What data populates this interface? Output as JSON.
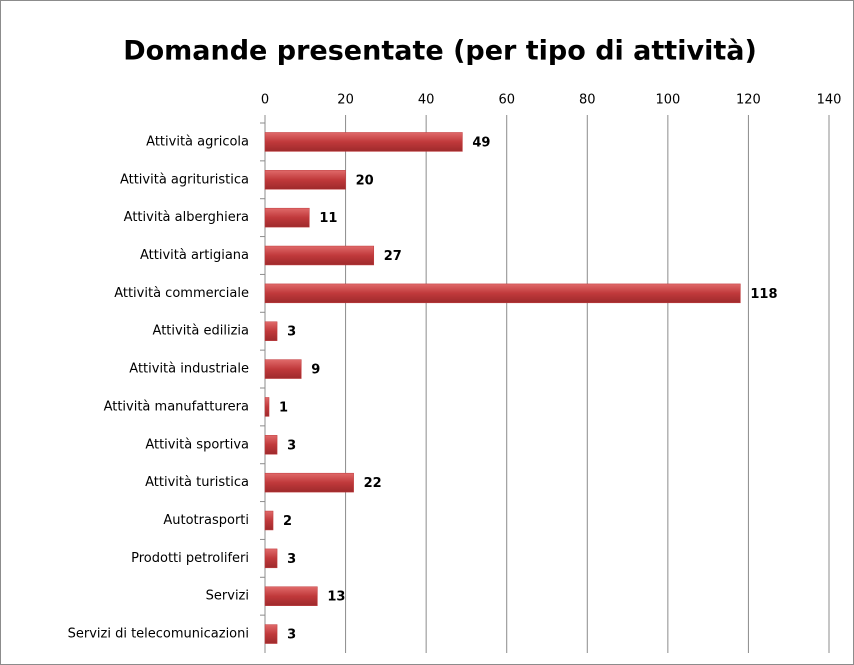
{
  "chart_data": {
    "type": "bar",
    "orientation": "horizontal",
    "title": "Domande presentate (per tipo di attività)",
    "categories": [
      "Attività agricola",
      "Attività agrituristica",
      "Attività alberghiera",
      "Attività artigiana",
      "Attività commerciale",
      "Attività edilizia",
      "Attività industriale",
      "Attività manufatturera",
      "Attività sportiva",
      "Attività turistica",
      "Autotrasporti",
      "Prodotti petroliferi",
      "Servizi",
      "Servizi di telecomunicazioni"
    ],
    "values": [
      49,
      20,
      11,
      27,
      118,
      3,
      9,
      1,
      3,
      22,
      2,
      3,
      13,
      3
    ],
    "color": "#c0393b",
    "xlim": [
      0,
      140
    ],
    "xticks": [
      0,
      20,
      40,
      60,
      80,
      100,
      120,
      140
    ],
    "grid": true
  }
}
